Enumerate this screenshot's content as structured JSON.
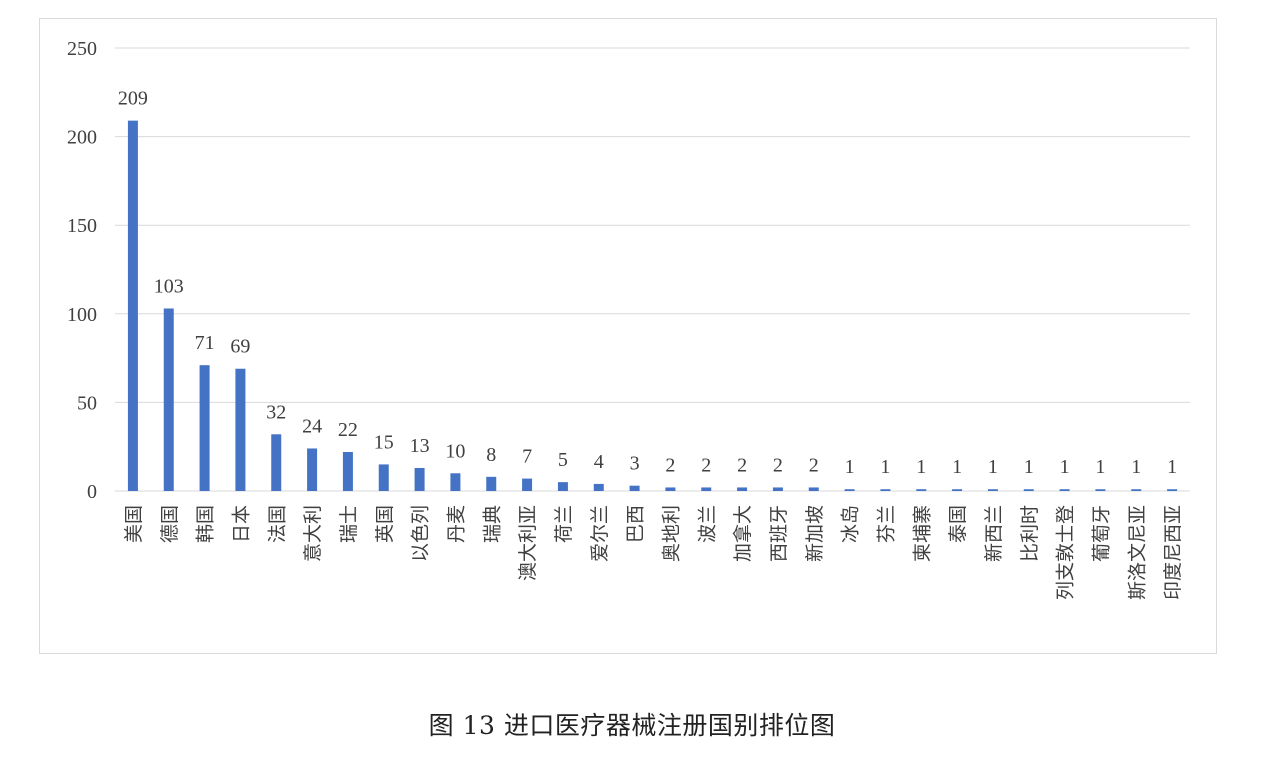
{
  "caption": "图 13 进口医疗器械注册国别排位图",
  "colors": {
    "bar": "#4472c4",
    "grid": "#d9d9d9",
    "text": "#404040"
  },
  "chart_data": {
    "type": "bar",
    "categories": [
      "美国",
      "德国",
      "韩国",
      "日本",
      "法国",
      "意大利",
      "瑞士",
      "英国",
      "以色列",
      "丹麦",
      "瑞典",
      "澳大利亚",
      "荷兰",
      "爱尔兰",
      "巴西",
      "奥地利",
      "波兰",
      "加拿大",
      "西班牙",
      "新加坡",
      "冰岛",
      "芬兰",
      "柬埔寨",
      "泰国",
      "新西兰",
      "比利时",
      "列支敦士登",
      "葡萄牙",
      "斯洛文尼亚",
      "印度尼西亚"
    ],
    "values": [
      209,
      103,
      71,
      69,
      32,
      24,
      22,
      15,
      13,
      10,
      8,
      7,
      5,
      4,
      3,
      2,
      2,
      2,
      2,
      2,
      1,
      1,
      1,
      1,
      1,
      1,
      1,
      1,
      1,
      1
    ],
    "title": "",
    "xlabel": "",
    "ylabel": "",
    "ylim": [
      0,
      250
    ],
    "yticks": [
      0,
      50,
      100,
      150,
      200,
      250
    ],
    "grid": true,
    "data_labels": true
  }
}
